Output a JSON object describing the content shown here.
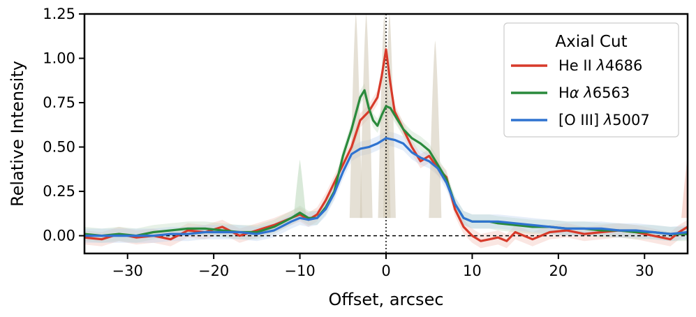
{
  "chart_data": {
    "type": "line",
    "xlabel": "Offset, arcsec",
    "ylabel": "Relative Intensity",
    "xlim": [
      -35,
      35
    ],
    "ylim": [
      -0.1,
      1.25
    ],
    "xticks": [
      -30,
      -20,
      -10,
      0,
      10,
      20,
      30
    ],
    "xtick_labels": [
      "−30",
      "−20",
      "−10",
      "0",
      "10",
      "20",
      "30"
    ],
    "yticks": [
      0.0,
      0.25,
      0.5,
      0.75,
      1.0,
      1.25
    ],
    "ytick_labels": [
      "0.00",
      "0.25",
      "0.50",
      "0.75",
      "1.00",
      "1.25"
    ],
    "grid": false,
    "reference_lines": {
      "horizontal_y": 0,
      "vertical_x": 0
    },
    "legend": {
      "title": "Axial Cut",
      "placement": "top-right",
      "entries": [
        {
          "name_prefix": "He II ",
          "name_italic": "λ",
          "name_suffix": "4686",
          "series": "He II λ4686"
        },
        {
          "name_prefix": "H",
          "name_italic": "α λ",
          "name_suffix": "6563",
          "series": "Hα λ6563"
        },
        {
          "name_prefix": "[O III] ",
          "name_italic": "λ",
          "name_suffix": "5007",
          "series": "[O III] λ5007"
        }
      ]
    },
    "series": [
      {
        "name": "He II λ4686",
        "color": "#d73a2a",
        "band_color": "#f2b8ad",
        "x": [
          -35,
          -33,
          -31,
          -29,
          -27,
          -25,
          -23,
          -21,
          -19,
          -17,
          -15,
          -13,
          -11,
          -10,
          -9,
          -8,
          -7,
          -6,
          -5,
          -4,
          -3,
          -2,
          -1,
          -0.5,
          0,
          0.5,
          1,
          2,
          3,
          4,
          5,
          6,
          7,
          8,
          9,
          10,
          11,
          12,
          13,
          14,
          15,
          17,
          19,
          21,
          23,
          25,
          27,
          29,
          31,
          33,
          34,
          35
        ],
        "y": [
          -0.01,
          -0.02,
          0.01,
          -0.01,
          0.0,
          -0.02,
          0.03,
          0.02,
          0.05,
          0.0,
          0.03,
          0.06,
          0.1,
          0.12,
          0.09,
          0.12,
          0.2,
          0.3,
          0.4,
          0.5,
          0.65,
          0.7,
          0.78,
          0.9,
          1.05,
          0.86,
          0.7,
          0.6,
          0.5,
          0.42,
          0.45,
          0.38,
          0.33,
          0.15,
          0.05,
          0.0,
          -0.03,
          -0.02,
          -0.01,
          -0.03,
          0.02,
          -0.02,
          0.02,
          0.03,
          0.01,
          0.02,
          0.03,
          0.02,
          0.0,
          -0.02,
          0.02,
          0.05
        ]
      },
      {
        "name": "Hα λ6563",
        "color": "#2a8a3c",
        "band_color": "#b9d7b9",
        "x": [
          -35,
          -33,
          -31,
          -29,
          -27,
          -25,
          -23,
          -21,
          -19,
          -17,
          -15,
          -13,
          -11,
          -10,
          -9,
          -8,
          -7,
          -6,
          -5,
          -4,
          -3,
          -2.5,
          -2,
          -1.5,
          -1,
          -0.5,
          0,
          0.5,
          1,
          2,
          3,
          4,
          5,
          6,
          7,
          8,
          9,
          10,
          11,
          12,
          13,
          15,
          17,
          19,
          21,
          23,
          25,
          27,
          29,
          31,
          33,
          35
        ],
        "y": [
          0.01,
          0.0,
          0.01,
          0.0,
          0.02,
          0.03,
          0.04,
          0.04,
          0.03,
          0.02,
          0.02,
          0.05,
          0.1,
          0.13,
          0.1,
          0.1,
          0.16,
          0.25,
          0.45,
          0.6,
          0.78,
          0.82,
          0.72,
          0.65,
          0.62,
          0.68,
          0.73,
          0.72,
          0.68,
          0.6,
          0.55,
          0.52,
          0.48,
          0.4,
          0.32,
          0.18,
          0.1,
          0.08,
          0.08,
          0.08,
          0.07,
          0.06,
          0.05,
          0.05,
          0.04,
          0.04,
          0.03,
          0.03,
          0.02,
          0.02,
          0.01,
          0.01
        ]
      },
      {
        "name": "[O III] λ5007",
        "color": "#2f73d0",
        "band_color": "#b8cdee",
        "x": [
          -35,
          -33,
          -31,
          -29,
          -27,
          -25,
          -23,
          -21,
          -19,
          -17,
          -15,
          -13,
          -11,
          -10,
          -9,
          -8,
          -7,
          -6,
          -5,
          -4,
          -3,
          -2,
          -1,
          0,
          1,
          2,
          3,
          4,
          5,
          6,
          7,
          8,
          9,
          10,
          11,
          12,
          13,
          15,
          17,
          19,
          21,
          23,
          25,
          27,
          29,
          31,
          33,
          35
        ],
        "y": [
          0.0,
          0.0,
          0.0,
          0.0,
          0.0,
          0.01,
          0.01,
          0.02,
          0.02,
          0.02,
          0.01,
          0.03,
          0.08,
          0.1,
          0.09,
          0.1,
          0.15,
          0.24,
          0.36,
          0.46,
          0.49,
          0.5,
          0.52,
          0.55,
          0.54,
          0.52,
          0.47,
          0.44,
          0.42,
          0.38,
          0.3,
          0.18,
          0.1,
          0.08,
          0.08,
          0.08,
          0.08,
          0.07,
          0.06,
          0.05,
          0.04,
          0.04,
          0.04,
          0.03,
          0.03,
          0.02,
          0.01,
          0.02
        ]
      }
    ],
    "uncertainty_spikes": [
      {
        "x": -10,
        "y": 0.43,
        "color": "#b9d7b9"
      },
      {
        "x": -3.5,
        "y": 1.25,
        "color": "#cfc6b2"
      },
      {
        "x": -2.3,
        "y": 1.25,
        "color": "#cfc6b2"
      },
      {
        "x": -0.2,
        "y": 1.25,
        "color": "#cfc6b2"
      },
      {
        "x": 0.4,
        "y": 1.25,
        "color": "#cfc6b2"
      },
      {
        "x": 5.7,
        "y": 1.1,
        "color": "#cfc6b2"
      },
      {
        "x": 35,
        "y": 0.45,
        "color": "#f2b8ad"
      }
    ]
  }
}
